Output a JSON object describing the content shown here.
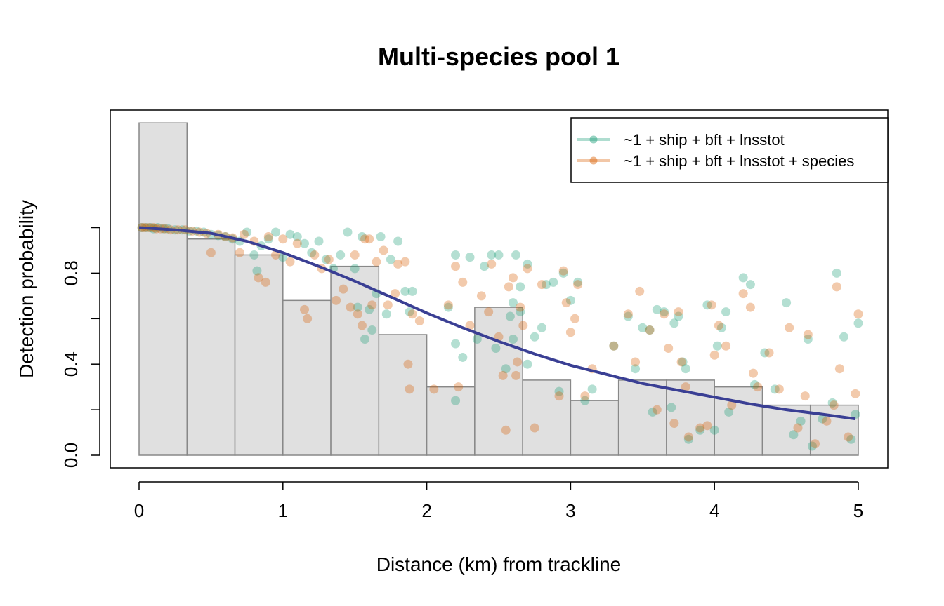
{
  "chart_data": {
    "type": "scatter",
    "title": "Multi-species pool 1",
    "xlabel": "Distance (km) from trackline",
    "ylabel": "Detection probability",
    "xlim": [
      0,
      5
    ],
    "ylim": [
      0,
      1
    ],
    "x_ticks": [
      "0",
      "1",
      "2",
      "3",
      "4",
      "5"
    ],
    "y_ticks": [
      "0.0",
      "0.4",
      "0.8"
    ],
    "y_tick_values": [
      0.0,
      0.2,
      0.4,
      0.6,
      0.8,
      1.0
    ],
    "grid": false,
    "legend_position": "top-right",
    "colors": {
      "series1": "#1b9e77",
      "series2": "#d95f02",
      "curve": "#3a3f94",
      "bar_fill": "#e0e0e0",
      "bar_stroke": "#888888"
    },
    "histogram": {
      "bin_width": 0.3333,
      "bin_starts": [
        0,
        0.3333,
        0.6667,
        1.0,
        1.3333,
        1.6667,
        2.0,
        2.3333,
        2.6667,
        3.0,
        3.3333,
        3.6667,
        4.0,
        4.3333,
        4.6667
      ],
      "heights": [
        1.46,
        0.95,
        0.88,
        0.68,
        0.83,
        0.53,
        0.3,
        0.65,
        0.33,
        0.24,
        0.33,
        0.33,
        0.3,
        0.22,
        0.22
      ]
    },
    "curve": {
      "x": [
        0,
        0.25,
        0.5,
        0.75,
        1.0,
        1.25,
        1.5,
        1.75,
        2.0,
        2.25,
        2.5,
        2.75,
        3.0,
        3.25,
        3.5,
        3.75,
        4.0,
        4.25,
        4.5,
        4.75,
        4.98
      ],
      "y": [
        1.0,
        0.99,
        0.975,
        0.94,
        0.89,
        0.83,
        0.765,
        0.695,
        0.625,
        0.56,
        0.5,
        0.445,
        0.395,
        0.355,
        0.315,
        0.285,
        0.255,
        0.225,
        0.2,
        0.18,
        0.16
      ]
    },
    "series": [
      {
        "name": "~1 + ship + bft + lnsstot",
        "points": [
          [
            0.02,
            1.0
          ],
          [
            0.05,
            1.0
          ],
          [
            0.08,
            1.0
          ],
          [
            0.1,
            0.995
          ],
          [
            0.13,
            1.0
          ],
          [
            0.17,
            0.995
          ],
          [
            0.2,
            0.995
          ],
          [
            0.25,
            0.99
          ],
          [
            0.3,
            0.99
          ],
          [
            0.35,
            0.985
          ],
          [
            0.4,
            0.985
          ],
          [
            0.45,
            0.98
          ],
          [
            0.5,
            0.97
          ],
          [
            0.55,
            0.965
          ],
          [
            0.6,
            0.96
          ],
          [
            0.65,
            0.95
          ],
          [
            0.7,
            0.94
          ],
          [
            0.75,
            0.98
          ],
          [
            0.8,
            0.88
          ],
          [
            0.82,
            0.81
          ],
          [
            0.85,
            0.92
          ],
          [
            0.9,
            0.95
          ],
          [
            0.95,
            0.98
          ],
          [
            1.0,
            0.87
          ],
          [
            1.05,
            0.97
          ],
          [
            1.1,
            0.96
          ],
          [
            1.15,
            0.93
          ],
          [
            1.2,
            0.89
          ],
          [
            1.25,
            0.94
          ],
          [
            1.3,
            0.86
          ],
          [
            1.35,
            0.82
          ],
          [
            1.4,
            0.88
          ],
          [
            1.45,
            0.98
          ],
          [
            1.5,
            0.82
          ],
          [
            1.52,
            0.65
          ],
          [
            1.55,
            0.96
          ],
          [
            1.57,
            0.51
          ],
          [
            1.6,
            0.64
          ],
          [
            1.62,
            0.55
          ],
          [
            1.65,
            0.71
          ],
          [
            1.68,
            0.96
          ],
          [
            1.72,
            0.62
          ],
          [
            1.75,
            0.86
          ],
          [
            1.8,
            0.94
          ],
          [
            1.85,
            0.72
          ],
          [
            1.88,
            0.63
          ],
          [
            1.9,
            0.72
          ],
          [
            2.15,
            0.65
          ],
          [
            2.2,
            0.88
          ],
          [
            2.2,
            0.24
          ],
          [
            2.2,
            0.49
          ],
          [
            2.25,
            0.43
          ],
          [
            2.3,
            0.87
          ],
          [
            2.35,
            0.51
          ],
          [
            2.4,
            0.83
          ],
          [
            2.45,
            0.88
          ],
          [
            2.48,
            0.47
          ],
          [
            2.5,
            0.88
          ],
          [
            2.55,
            0.38
          ],
          [
            2.58,
            0.61
          ],
          [
            2.6,
            0.67
          ],
          [
            2.6,
            0.51
          ],
          [
            2.62,
            0.88
          ],
          [
            2.65,
            0.74
          ],
          [
            2.65,
            0.63
          ],
          [
            2.7,
            0.84
          ],
          [
            2.7,
            0.4
          ],
          [
            2.75,
            0.52
          ],
          [
            2.8,
            0.56
          ],
          [
            2.83,
            0.75
          ],
          [
            2.88,
            0.76
          ],
          [
            2.92,
            0.28
          ],
          [
            2.95,
            0.8
          ],
          [
            3.0,
            0.68
          ],
          [
            3.05,
            0.76
          ],
          [
            3.1,
            0.24
          ],
          [
            3.15,
            0.29
          ],
          [
            3.3,
            0.48
          ],
          [
            3.4,
            0.61
          ],
          [
            3.45,
            0.38
          ],
          [
            3.5,
            0.56
          ],
          [
            3.55,
            0.55
          ],
          [
            3.57,
            0.19
          ],
          [
            3.6,
            0.64
          ],
          [
            3.65,
            0.63
          ],
          [
            3.7,
            0.21
          ],
          [
            3.72,
            0.58
          ],
          [
            3.75,
            0.61
          ],
          [
            3.78,
            0.41
          ],
          [
            3.8,
            0.38
          ],
          [
            3.82,
            0.07
          ],
          [
            3.9,
            0.11
          ],
          [
            3.95,
            0.66
          ],
          [
            4.0,
            0.11
          ],
          [
            4.02,
            0.48
          ],
          [
            4.05,
            0.56
          ],
          [
            4.08,
            0.63
          ],
          [
            4.1,
            0.19
          ],
          [
            4.2,
            0.78
          ],
          [
            4.25,
            0.75
          ],
          [
            4.28,
            0.31
          ],
          [
            4.35,
            0.45
          ],
          [
            4.42,
            0.29
          ],
          [
            4.5,
            0.67
          ],
          [
            4.55,
            0.09
          ],
          [
            4.6,
            0.15
          ],
          [
            4.65,
            0.51
          ],
          [
            4.68,
            0.04
          ],
          [
            4.75,
            0.16
          ],
          [
            4.82,
            0.23
          ],
          [
            4.85,
            0.8
          ],
          [
            4.9,
            0.52
          ],
          [
            4.95,
            0.07
          ],
          [
            4.98,
            0.18
          ],
          [
            5.0,
            0.58
          ]
        ]
      },
      {
        "name": "~1 + ship + bft + lnsstot + species",
        "points": [
          [
            0.02,
            1.0
          ],
          [
            0.04,
            1.0
          ],
          [
            0.07,
            1.0
          ],
          [
            0.1,
            1.0
          ],
          [
            0.12,
            0.995
          ],
          [
            0.15,
            0.995
          ],
          [
            0.18,
            0.995
          ],
          [
            0.22,
            0.99
          ],
          [
            0.27,
            0.99
          ],
          [
            0.32,
            0.99
          ],
          [
            0.37,
            0.985
          ],
          [
            0.42,
            0.98
          ],
          [
            0.47,
            0.975
          ],
          [
            0.5,
            0.89
          ],
          [
            0.55,
            0.97
          ],
          [
            0.6,
            0.96
          ],
          [
            0.65,
            0.955
          ],
          [
            0.7,
            0.89
          ],
          [
            0.73,
            0.97
          ],
          [
            0.8,
            0.94
          ],
          [
            0.83,
            0.78
          ],
          [
            0.88,
            0.76
          ],
          [
            0.9,
            0.96
          ],
          [
            0.95,
            0.88
          ],
          [
            1.0,
            0.95
          ],
          [
            1.05,
            0.85
          ],
          [
            1.1,
            0.93
          ],
          [
            1.15,
            0.64
          ],
          [
            1.17,
            0.6
          ],
          [
            1.22,
            0.88
          ],
          [
            1.27,
            0.82
          ],
          [
            1.32,
            0.86
          ],
          [
            1.37,
            0.68
          ],
          [
            1.42,
            0.73
          ],
          [
            1.47,
            0.65
          ],
          [
            1.5,
            0.88
          ],
          [
            1.52,
            0.62
          ],
          [
            1.55,
            0.57
          ],
          [
            1.57,
            0.95
          ],
          [
            1.6,
            0.95
          ],
          [
            1.62,
            0.66
          ],
          [
            1.65,
            0.85
          ],
          [
            1.7,
            0.9
          ],
          [
            1.73,
            0.66
          ],
          [
            1.78,
            0.71
          ],
          [
            1.8,
            0.84
          ],
          [
            1.85,
            0.85
          ],
          [
            1.87,
            0.4
          ],
          [
            1.88,
            0.29
          ],
          [
            1.9,
            0.62
          ],
          [
            1.95,
            0.59
          ],
          [
            2.05,
            0.29
          ],
          [
            2.15,
            0.66
          ],
          [
            2.2,
            0.83
          ],
          [
            2.22,
            0.3
          ],
          [
            2.25,
            0.76
          ],
          [
            2.3,
            0.57
          ],
          [
            2.38,
            0.7
          ],
          [
            2.43,
            0.63
          ],
          [
            2.45,
            0.84
          ],
          [
            2.5,
            0.52
          ],
          [
            2.53,
            0.35
          ],
          [
            2.55,
            0.11
          ],
          [
            2.57,
            0.74
          ],
          [
            2.6,
            0.78
          ],
          [
            2.62,
            0.35
          ],
          [
            2.63,
            0.41
          ],
          [
            2.65,
            0.65
          ],
          [
            2.67,
            0.57
          ],
          [
            2.7,
            0.82
          ],
          [
            2.75,
            0.12
          ],
          [
            2.8,
            0.75
          ],
          [
            2.92,
            0.26
          ],
          [
            2.95,
            0.81
          ],
          [
            2.97,
            0.67
          ],
          [
            3.0,
            0.54
          ],
          [
            3.03,
            0.6
          ],
          [
            3.05,
            0.75
          ],
          [
            3.1,
            0.26
          ],
          [
            3.15,
            0.38
          ],
          [
            3.3,
            0.48
          ],
          [
            3.4,
            0.62
          ],
          [
            3.45,
            0.41
          ],
          [
            3.48,
            0.72
          ],
          [
            3.55,
            0.55
          ],
          [
            3.6,
            0.2
          ],
          [
            3.65,
            0.62
          ],
          [
            3.68,
            0.47
          ],
          [
            3.72,
            0.14
          ],
          [
            3.75,
            0.63
          ],
          [
            3.77,
            0.41
          ],
          [
            3.8,
            0.3
          ],
          [
            3.82,
            0.08
          ],
          [
            3.9,
            0.12
          ],
          [
            3.95,
            0.13
          ],
          [
            3.98,
            0.66
          ],
          [
            4.0,
            0.44
          ],
          [
            4.03,
            0.57
          ],
          [
            4.08,
            0.48
          ],
          [
            4.12,
            0.22
          ],
          [
            4.2,
            0.71
          ],
          [
            4.25,
            0.65
          ],
          [
            4.27,
            0.36
          ],
          [
            4.3,
            0.3
          ],
          [
            4.38,
            0.45
          ],
          [
            4.45,
            0.29
          ],
          [
            4.52,
            0.56
          ],
          [
            4.58,
            0.12
          ],
          [
            4.63,
            0.26
          ],
          [
            4.65,
            0.53
          ],
          [
            4.7,
            0.05
          ],
          [
            4.78,
            0.15
          ],
          [
            4.83,
            0.22
          ],
          [
            4.85,
            0.74
          ],
          [
            4.87,
            0.38
          ],
          [
            4.93,
            0.08
          ],
          [
            4.98,
            0.27
          ],
          [
            5.0,
            0.62
          ]
        ]
      }
    ]
  }
}
